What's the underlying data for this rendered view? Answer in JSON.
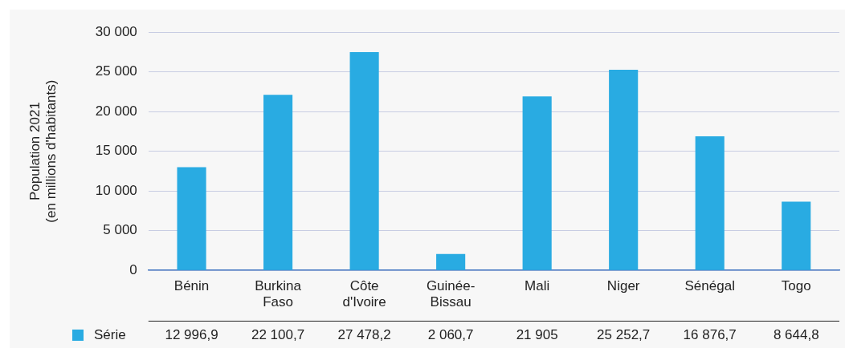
{
  "chart_data": {
    "type": "bar",
    "ylabel": "Population 2021\n(en millions d'habitants)",
    "categories": [
      "Bénin",
      "Burkina Faso",
      "Côte d'Ivoire",
      "Guinée-Bissau",
      "Mali",
      "Niger",
      "Sénégal",
      "Togo"
    ],
    "series": [
      {
        "name": "Série",
        "color": "#29abe2",
        "values": [
          12996.9,
          22100.7,
          27478.2,
          2060.7,
          21905,
          25252.7,
          16876.7,
          8644.8
        ],
        "value_labels": [
          "12 996,9",
          "22 100,7",
          "27 478,2",
          "2 060,7",
          "21 905",
          "25 252,7",
          "16 876,7",
          "8 644,8"
        ]
      }
    ],
    "ylim": [
      0,
      30000
    ],
    "yticks": [
      {
        "value": 0,
        "label": "0"
      },
      {
        "value": 5000,
        "label": "5 000"
      },
      {
        "value": 10000,
        "label": "10 000"
      },
      {
        "value": 15000,
        "label": "15 000"
      },
      {
        "value": 20000,
        "label": "20 000"
      },
      {
        "value": 25000,
        "label": "25 000"
      },
      {
        "value": 30000,
        "label": "30 000"
      }
    ],
    "grid": "y",
    "data_labels": true
  }
}
